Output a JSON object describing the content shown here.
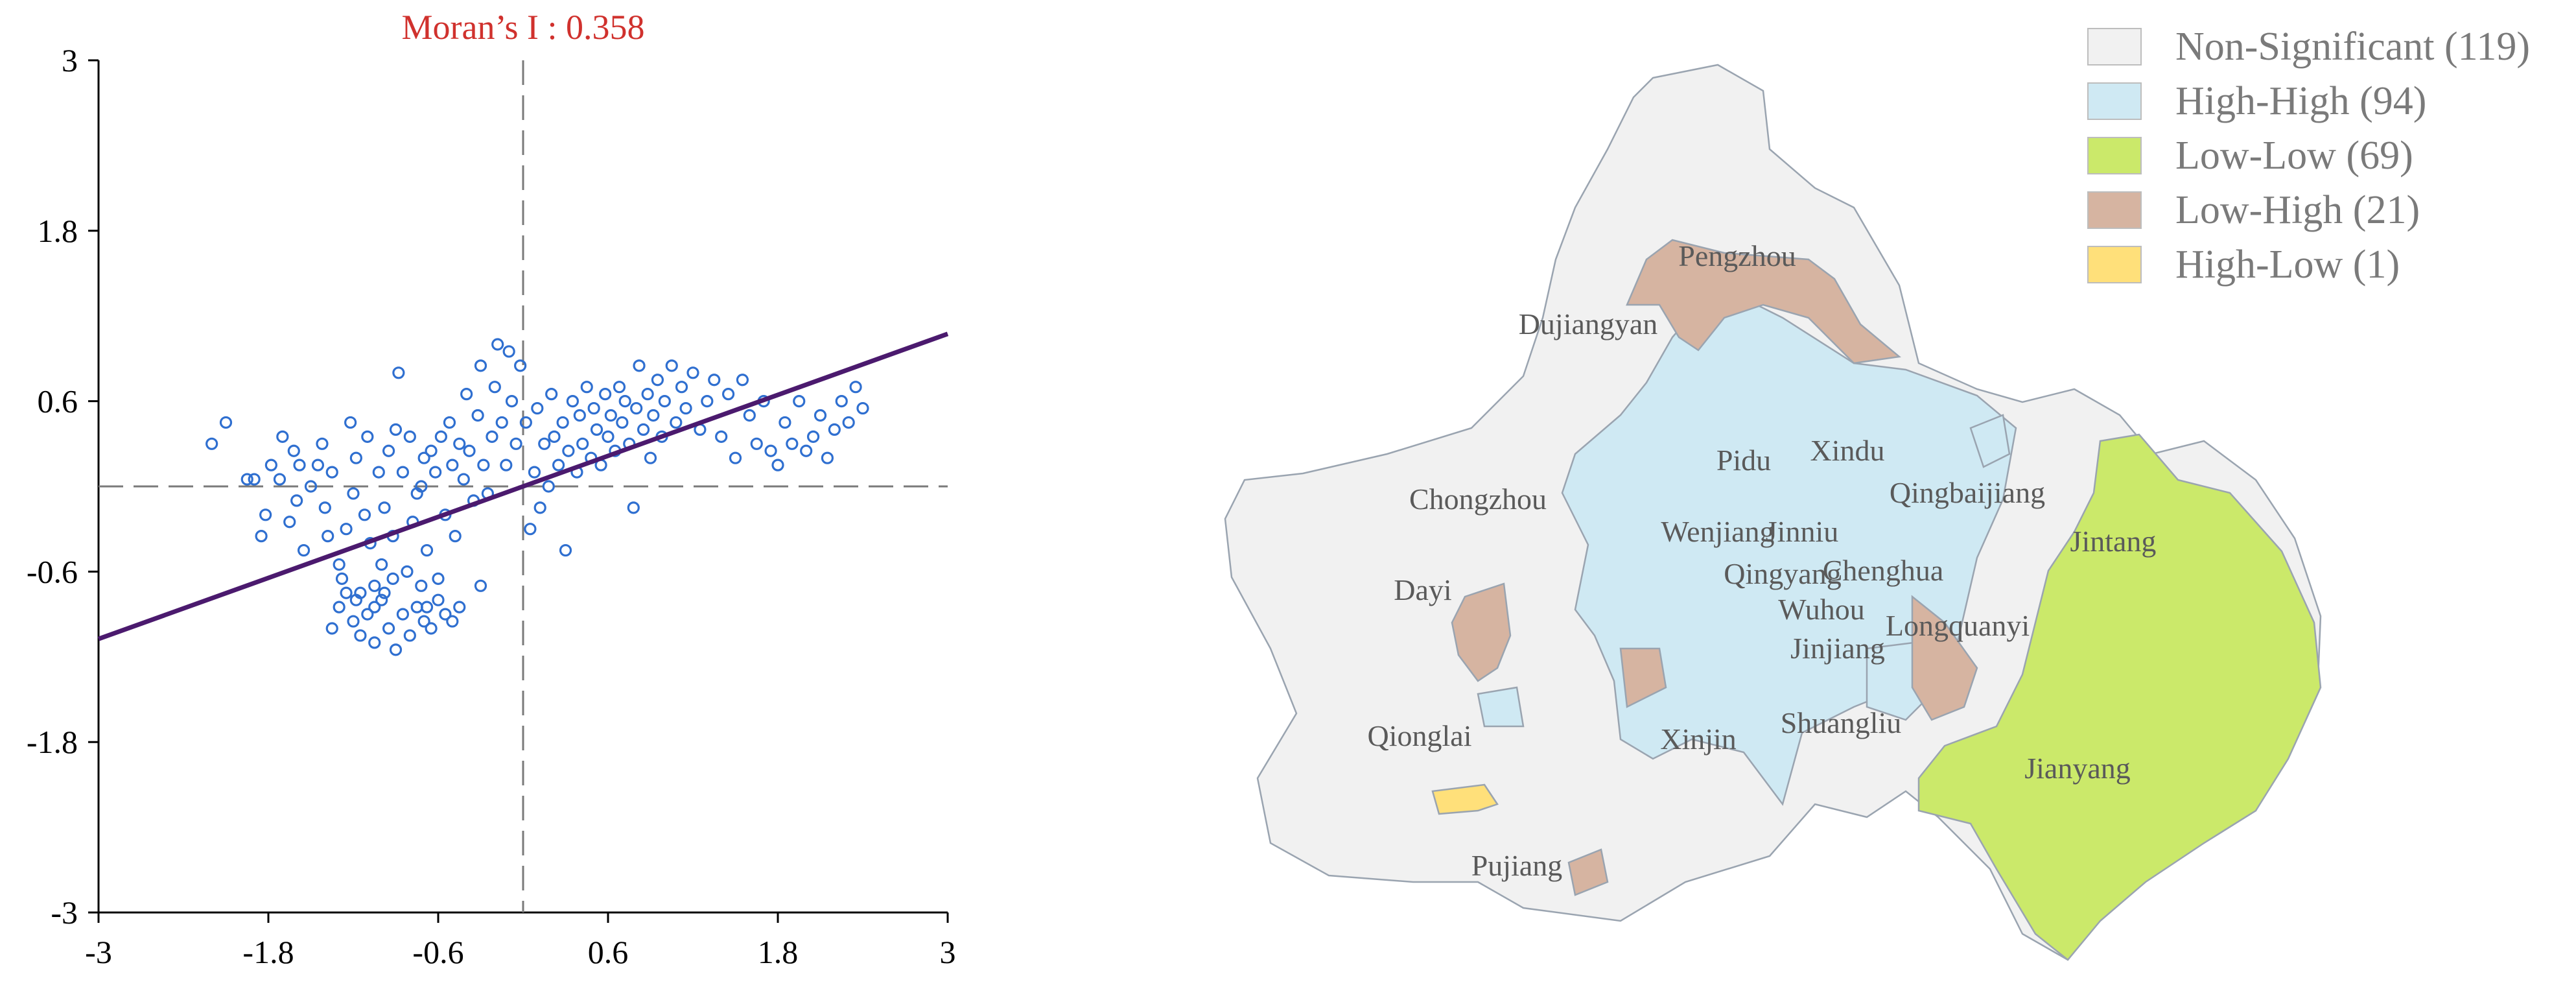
{
  "chart_data": [
    {
      "type": "scatter",
      "title": "Moran’s I : 0.358",
      "xlabel": "",
      "ylabel": "",
      "xlim": [
        -3,
        3
      ],
      "ylim": [
        -3,
        3
      ],
      "x_ticks": [
        "-3",
        "-1.8",
        "-0.6",
        "0.6",
        "1.8",
        "3"
      ],
      "y_ticks": [
        "3",
        "1.8",
        "0.6",
        "-0.6",
        "-1.8",
        "-3"
      ],
      "fit_line": {
        "slope": 0.358,
        "intercept": 0.0
      },
      "quadrant_lines": {
        "x": 0,
        "y": 0
      },
      "colors": {
        "points": "#2f6fd0",
        "fit_line": "#4b1a6e",
        "title": "#d0312d",
        "axes": "#000000",
        "quadrant": "#7a7a7a"
      },
      "points": [
        [
          -2.2,
          0.3
        ],
        [
          -2.1,
          0.45
        ],
        [
          -1.95,
          0.05
        ],
        [
          -1.9,
          0.05
        ],
        [
          -1.85,
          -0.35
        ],
        [
          -1.82,
          -0.2
        ],
        [
          -1.78,
          0.15
        ],
        [
          -1.72,
          0.05
        ],
        [
          -1.7,
          0.35
        ],
        [
          -1.65,
          -0.25
        ],
        [
          -1.62,
          0.25
        ],
        [
          -1.6,
          -0.1
        ],
        [
          -1.58,
          0.15
        ],
        [
          -1.55,
          -0.45
        ],
        [
          -1.5,
          0.0
        ],
        [
          -1.45,
          0.15
        ],
        [
          -1.42,
          0.3
        ],
        [
          -1.4,
          -0.15
        ],
        [
          -1.38,
          -0.35
        ],
        [
          -1.35,
          0.1
        ],
        [
          -1.3,
          -0.55
        ],
        [
          -1.28,
          -0.65
        ],
        [
          -1.25,
          -0.3
        ],
        [
          -1.22,
          0.45
        ],
        [
          -1.2,
          -0.05
        ],
        [
          -1.18,
          0.2
        ],
        [
          -1.15,
          -0.75
        ],
        [
          -1.12,
          -0.2
        ],
        [
          -1.1,
          0.35
        ],
        [
          -1.08,
          -0.4
        ],
        [
          -1.05,
          -0.85
        ],
        [
          -1.02,
          0.1
        ],
        [
          -1.0,
          -0.55
        ],
        [
          -0.98,
          -0.15
        ],
        [
          -0.95,
          0.25
        ],
        [
          -0.92,
          -0.35
        ],
        [
          -0.9,
          0.4
        ],
        [
          -0.88,
          0.8
        ],
        [
          -0.85,
          0.1
        ],
        [
          -0.82,
          -0.6
        ],
        [
          -0.8,
          0.35
        ],
        [
          -0.78,
          -0.25
        ],
        [
          -0.75,
          -0.05
        ],
        [
          -0.72,
          0.0
        ],
        [
          -0.7,
          0.2
        ],
        [
          -0.68,
          -0.45
        ],
        [
          -0.65,
          0.25
        ],
        [
          -0.62,
          0.1
        ],
        [
          -0.6,
          -0.65
        ],
        [
          -0.58,
          0.35
        ],
        [
          -0.55,
          -0.2
        ],
        [
          -0.52,
          0.45
        ],
        [
          -0.5,
          0.15
        ],
        [
          -0.48,
          -0.35
        ],
        [
          -0.45,
          0.3
        ],
        [
          -0.42,
          0.05
        ],
        [
          -0.4,
          0.65
        ],
        [
          -0.38,
          0.25
        ],
        [
          -0.35,
          -0.1
        ],
        [
          -0.32,
          0.5
        ],
        [
          -0.3,
          0.85
        ],
        [
          -0.28,
          0.15
        ],
        [
          -0.25,
          -0.05
        ],
        [
          -0.22,
          0.35
        ],
        [
          -0.2,
          0.7
        ],
        [
          -0.18,
          1.0
        ],
        [
          -0.15,
          0.45
        ],
        [
          -0.12,
          0.15
        ],
        [
          -0.1,
          0.95
        ],
        [
          -0.08,
          0.6
        ],
        [
          -0.05,
          0.3
        ],
        [
          -0.02,
          0.85
        ],
        [
          0.02,
          0.45
        ],
        [
          0.05,
          -0.3
        ],
        [
          0.08,
          0.1
        ],
        [
          0.1,
          0.55
        ],
        [
          0.12,
          -0.15
        ],
        [
          0.15,
          0.3
        ],
        [
          0.18,
          0.0
        ],
        [
          0.2,
          0.65
        ],
        [
          0.22,
          0.35
        ],
        [
          0.25,
          0.15
        ],
        [
          0.28,
          0.45
        ],
        [
          0.3,
          -0.45
        ],
        [
          0.32,
          0.25
        ],
        [
          0.35,
          0.6
        ],
        [
          0.38,
          0.1
        ],
        [
          0.4,
          0.5
        ],
        [
          0.42,
          0.3
        ],
        [
          0.45,
          0.7
        ],
        [
          0.48,
          0.2
        ],
        [
          0.5,
          0.55
        ],
        [
          0.52,
          0.4
        ],
        [
          0.55,
          0.15
        ],
        [
          0.58,
          0.65
        ],
        [
          0.6,
          0.35
        ],
        [
          0.62,
          0.5
        ],
        [
          0.65,
          0.25
        ],
        [
          0.68,
          0.7
        ],
        [
          0.7,
          0.45
        ],
        [
          0.72,
          0.6
        ],
        [
          0.75,
          0.3
        ],
        [
          0.78,
          -0.15
        ],
        [
          0.8,
          0.55
        ],
        [
          0.82,
          0.85
        ],
        [
          0.85,
          0.4
        ],
        [
          0.88,
          0.65
        ],
        [
          0.9,
          0.2
        ],
        [
          0.92,
          0.5
        ],
        [
          0.95,
          0.75
        ],
        [
          0.98,
          0.35
        ],
        [
          1.0,
          0.6
        ],
        [
          1.05,
          0.85
        ],
        [
          1.08,
          0.45
        ],
        [
          1.12,
          0.7
        ],
        [
          1.15,
          0.55
        ],
        [
          1.2,
          0.8
        ],
        [
          1.25,
          0.4
        ],
        [
          1.3,
          0.6
        ],
        [
          1.35,
          0.75
        ],
        [
          1.4,
          0.35
        ],
        [
          1.45,
          0.65
        ],
        [
          1.5,
          0.2
        ],
        [
          1.55,
          0.75
        ],
        [
          1.6,
          0.5
        ],
        [
          1.65,
          0.3
        ],
        [
          1.7,
          0.6
        ],
        [
          1.75,
          0.25
        ],
        [
          1.8,
          0.15
        ],
        [
          1.85,
          0.45
        ],
        [
          1.9,
          0.3
        ],
        [
          1.95,
          0.6
        ],
        [
          2.0,
          0.25
        ],
        [
          2.05,
          0.35
        ],
        [
          2.1,
          0.5
        ],
        [
          2.15,
          0.2
        ],
        [
          2.2,
          0.4
        ],
        [
          2.25,
          0.6
        ],
        [
          2.3,
          0.45
        ],
        [
          2.35,
          0.7
        ],
        [
          2.4,
          0.55
        ],
        [
          -1.2,
          -0.95
        ],
        [
          -1.15,
          -1.05
        ],
        [
          -1.1,
          -0.9
        ],
        [
          -1.05,
          -1.1
        ],
        [
          -1.0,
          -0.8
        ],
        [
          -0.95,
          -1.0
        ],
        [
          -0.9,
          -1.15
        ],
        [
          -0.85,
          -0.9
        ],
        [
          -0.8,
          -1.05
        ],
        [
          -0.75,
          -0.85
        ],
        [
          -0.7,
          -0.95
        ],
        [
          -0.65,
          -1.0
        ],
        [
          -0.6,
          -0.8
        ],
        [
          -0.55,
          -0.9
        ],
        [
          -0.5,
          -0.95
        ],
        [
          -1.25,
          -0.75
        ],
        [
          -1.18,
          -0.8
        ],
        [
          -1.05,
          -0.7
        ],
        [
          -0.98,
          -0.75
        ],
        [
          -0.92,
          -0.65
        ],
        [
          -0.72,
          -0.7
        ],
        [
          -0.68,
          -0.85
        ],
        [
          -0.45,
          -0.85
        ],
        [
          -1.3,
          -0.85
        ],
        [
          -1.35,
          -1.0
        ],
        [
          -0.3,
          -0.7
        ]
      ]
    },
    {
      "type": "map",
      "legend": [
        {
          "label": "Non-Significant (119)",
          "color": "#f1f1f1"
        },
        {
          "label": "High-High (94)",
          "color": "#cfe9f3"
        },
        {
          "label": "Low-Low (69)",
          "color": "#cbe96a"
        },
        {
          "label": "Low-High (21)",
          "color": "#d6b4a1"
        },
        {
          "label": "High-Low (1)",
          "color": "#ffe07a"
        }
      ],
      "district_labels": [
        "Pengzhou",
        "Dujiangyan",
        "Pidu",
        "Xindu",
        "Qingbaijiang",
        "Chongzhou",
        "Wenjiang",
        "Jinniu",
        "Jintang",
        "Qingyang",
        "Chenghua",
        "Dayi",
        "Wuhou",
        "Longquanyi",
        "Jinjiang",
        "Qionglai",
        "Shuangliu",
        "Xinjin",
        "Jianyang",
        "Pujiang"
      ]
    }
  ]
}
